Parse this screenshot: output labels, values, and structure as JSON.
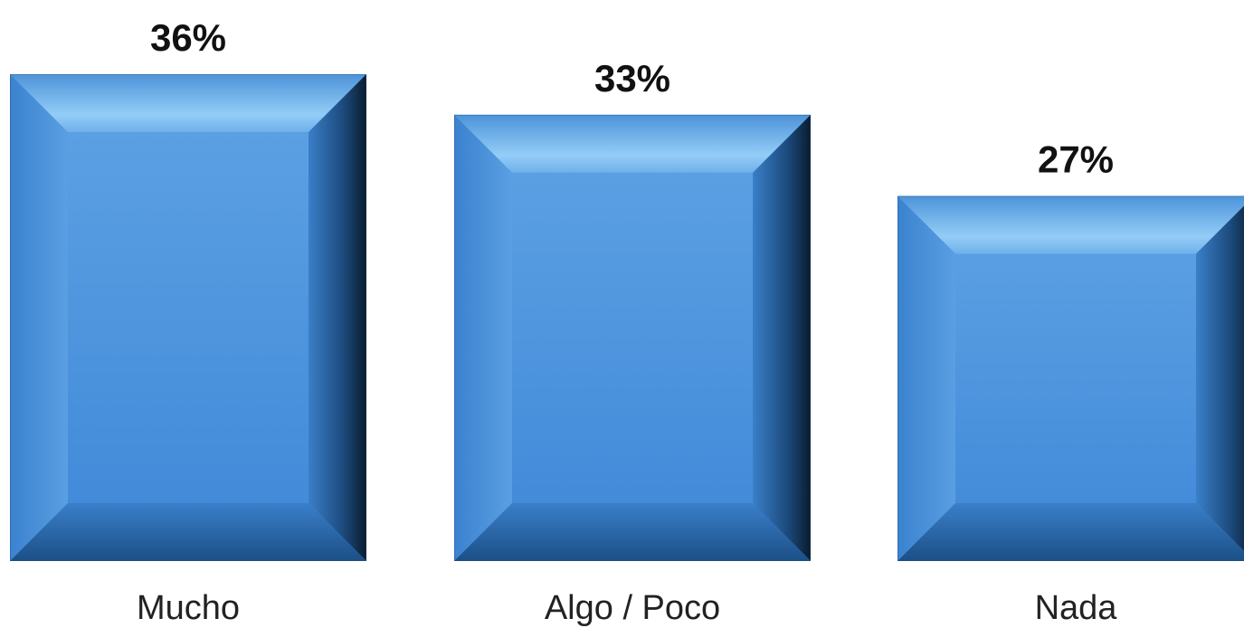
{
  "chart_data": {
    "type": "bar",
    "categories": [
      "Mucho",
      "Algo / Poco",
      "Nada"
    ],
    "values": [
      36,
      33,
      27
    ],
    "value_labels": [
      "36%",
      "33%",
      "27%"
    ],
    "title": "",
    "xlabel": "",
    "ylabel": "",
    "ylim": [
      0,
      36
    ],
    "grid": false,
    "legend": "none",
    "colors": {
      "bar_face": "#4a8fd6",
      "bar_highlight": "#8ec8f5",
      "bar_shadow": "#0f2740",
      "bar_edge_dark": "#1d4a78"
    }
  }
}
